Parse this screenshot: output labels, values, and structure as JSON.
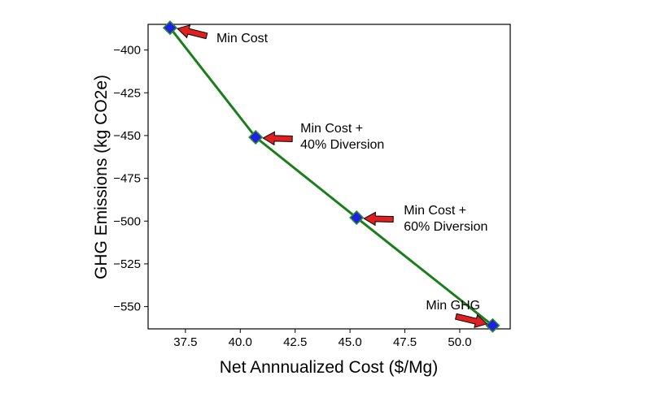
{
  "chart_data": {
    "type": "line",
    "title": "",
    "xlabel": "Net Annnualized Cost ($/Mg)",
    "ylabel": "GHG Emissions (kg CO2e)",
    "xlim": [
      35.8,
      52.3
    ],
    "ylim": [
      -563,
      -385
    ],
    "xticks": [
      37.5,
      40.0,
      42.5,
      45.0,
      47.5,
      50.0
    ],
    "xtick_labels": [
      "37.5",
      "40.0",
      "42.5",
      "45.0",
      "47.5",
      "50.0"
    ],
    "yticks": [
      -400,
      -425,
      -450,
      -475,
      -500,
      -525,
      -550
    ],
    "ytick_labels": [
      "−400",
      "−425",
      "−450",
      "−475",
      "−500",
      "−525",
      "−550"
    ],
    "grid": false,
    "series": [
      {
        "line_color": "#1a7f1a",
        "marker": "diamond",
        "marker_color": "#1f1fe6",
        "x": [
          36.8,
          40.7,
          45.3,
          51.5
        ],
        "y": [
          -387,
          -451,
          -498,
          -561
        ]
      }
    ],
    "annotations": [
      {
        "lines": [
          "Min Cost"
        ],
        "x": 36.8,
        "y": -387
      },
      {
        "lines": [
          "Min Cost +",
          "40% Diversion"
        ],
        "x": 40.7,
        "y": -451
      },
      {
        "lines": [
          "Min Cost +",
          "60% Diversion"
        ],
        "x": 45.3,
        "y": -498
      },
      {
        "lines": [
          "Min GHG"
        ],
        "x": 51.5,
        "y": -561
      }
    ],
    "arrow_color": "#e02020"
  }
}
